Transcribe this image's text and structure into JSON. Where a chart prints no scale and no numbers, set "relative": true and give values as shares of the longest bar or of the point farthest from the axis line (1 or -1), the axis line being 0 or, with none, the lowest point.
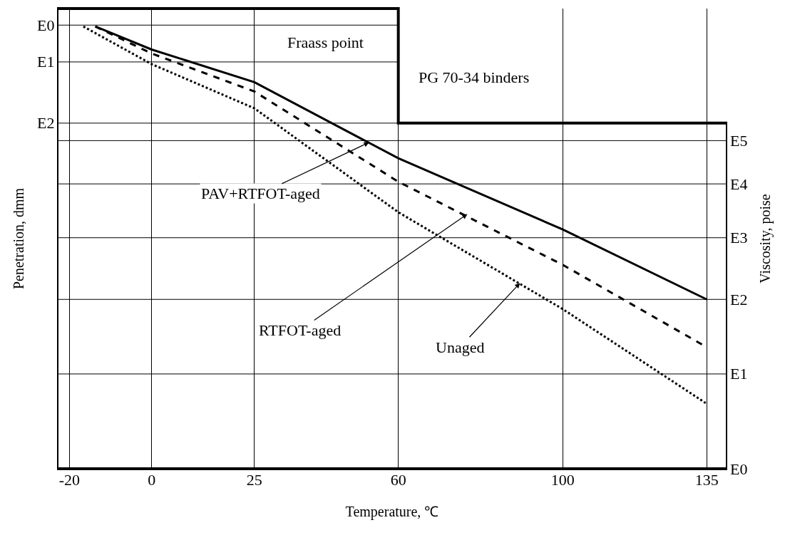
{
  "chart_data": {
    "type": "line",
    "relative": true,
    "xlabel": "Temperature, ℃",
    "ylabel": "Penetration, dmm",
    "y2label": "Viscosity, poise",
    "xlim": [
      -23,
      140
    ],
    "xticks": [
      -20,
      0,
      25,
      60,
      100,
      135
    ],
    "grid": true,
    "marker": "none",
    "series": [
      {
        "color": "#000000",
        "line_style": "solid",
        "x": [
          -13.7,
          0,
          25,
          60,
          100,
          135
        ],
        "values": [
          1,
          0.948,
          0.874,
          0.702,
          0.541,
          0.383
        ]
      },
      {
        "color": "#000000",
        "line_style": "dashed",
        "x": [
          -13.7,
          0,
          25,
          60,
          100,
          135
        ],
        "values": [
          1,
          0.939,
          0.853,
          0.649,
          0.461,
          0.275
        ]
      },
      {
        "color": "#000000",
        "line_style": "dotted",
        "x": [
          -16.6,
          0,
          25,
          60,
          100,
          135
        ],
        "values": [
          1,
          0.915,
          0.815,
          0.58,
          0.361,
          0.147
        ]
      }
    ],
    "annotations": [
      "Fraass point",
      "PG 70-34 binders",
      "E0",
      "E1",
      "E2",
      "E0",
      "E1",
      "E2",
      "E3",
      "E4",
      "E5",
      {
        "text": "PAV+RTFOT-aged",
        "x": 52.9,
        "y": 0.738
      },
      {
        "text": "RTFOT-aged",
        "x": 76.8,
        "y": 0.576
      },
      {
        "text": "Unaged",
        "x": 89.6,
        "y": 0.42
      }
    ]
  }
}
